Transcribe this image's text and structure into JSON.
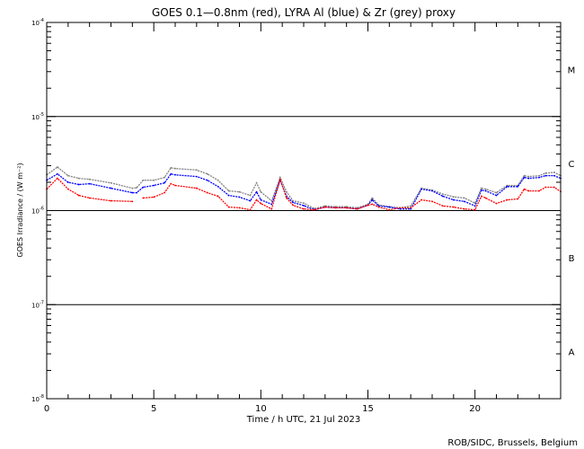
{
  "chart_data": {
    "type": "line",
    "title": "GOES 0.1—0.8nm (red), LYRA Al (blue) & Zr (grey) proxy",
    "xlabel": "Time / h UTC, 21 Jul 2023",
    "ylabel": "GOES Irradiance / (W m⁻²)",
    "xlim": [
      0,
      24
    ],
    "ylim": [
      1e-08,
      0.0001
    ],
    "yscale": "log",
    "x_ticks": [
      0,
      5,
      10,
      15,
      20
    ],
    "x_tick_labels": [
      "0",
      "5",
      "10",
      "15",
      "20"
    ],
    "y_ticks": [
      1e-08,
      1e-07,
      1e-06,
      1e-05,
      0.0001
    ],
    "y_tick_labels": [
      {
        "base": "10",
        "exp": "-8"
      },
      {
        "base": "10",
        "exp": "-7"
      },
      {
        "base": "10",
        "exp": "-6"
      },
      {
        "base": "10",
        "exp": "-5"
      },
      {
        "base": "10",
        "exp": "-4"
      }
    ],
    "flare_classes": [
      {
        "label": "A",
        "lo": 1e-08,
        "hi": 1e-07
      },
      {
        "label": "B",
        "lo": 1e-07,
        "hi": 1e-06
      },
      {
        "label": "C",
        "lo": 1e-06,
        "hi": 1e-05
      },
      {
        "label": "M",
        "lo": 1e-05,
        "hi": 0.0001
      }
    ],
    "class_boundaries": [
      1e-07,
      1e-06,
      1e-05
    ],
    "x": [
      0,
      0.5,
      1,
      1.5,
      2,
      3,
      4,
      4.2,
      4.5,
      5,
      5.5,
      5.8,
      6,
      7,
      7.5,
      8,
      8.5,
      9,
      9.5,
      9.8,
      10,
      10.5,
      10.9,
      11.2,
      11.5,
      12,
      12.5,
      13,
      13.5,
      14,
      14.5,
      15,
      15.2,
      15.5,
      16,
      16.5,
      17,
      17.5,
      18,
      18.5,
      19,
      19.5,
      20,
      20.3,
      20.5,
      21,
      21.5,
      22,
      22.3,
      22.5,
      23,
      23.3,
      23.7,
      24
    ],
    "series": [
      {
        "name": "LYRA Zr proxy",
        "color": "#808080",
        "unit_scale": 1e-06,
        "values": [
          2.4,
          2.9,
          2.35,
          2.2,
          2.15,
          1.97,
          1.73,
          1.75,
          2.1,
          2.1,
          2.25,
          2.85,
          2.8,
          2.7,
          2.45,
          2.1,
          1.62,
          1.58,
          1.45,
          1.97,
          1.58,
          1.27,
          2.25,
          1.58,
          1.27,
          1.2,
          1.05,
          1.12,
          1.1,
          1.1,
          1.07,
          1.17,
          1.36,
          1.15,
          1.1,
          1.07,
          1.12,
          1.73,
          1.65,
          1.5,
          1.4,
          1.36,
          1.2,
          1.73,
          1.69,
          1.55,
          1.85,
          1.85,
          2.35,
          2.3,
          2.35,
          2.5,
          2.55,
          2.35
        ]
      },
      {
        "name": "LYRA Al proxy",
        "color": "#0000ff",
        "unit_scale": 1e-06,
        "values": [
          2.1,
          2.45,
          2.0,
          1.89,
          1.93,
          1.73,
          1.55,
          1.55,
          1.77,
          1.85,
          1.97,
          2.45,
          2.4,
          2.3,
          2.1,
          1.8,
          1.45,
          1.39,
          1.27,
          1.58,
          1.3,
          1.17,
          2.1,
          1.42,
          1.22,
          1.13,
          1.02,
          1.09,
          1.07,
          1.07,
          1.04,
          1.14,
          1.3,
          1.12,
          1.09,
          1.04,
          1.04,
          1.69,
          1.62,
          1.42,
          1.3,
          1.25,
          1.12,
          1.65,
          1.62,
          1.45,
          1.8,
          1.8,
          2.25,
          2.2,
          2.25,
          2.35,
          2.35,
          2.2
        ]
      },
      {
        "name": "GOES 0.1-0.8nm",
        "color": "#ff0000",
        "unit_scale": 1e-06,
        "values": [
          1.69,
          2.2,
          1.69,
          1.45,
          1.36,
          1.27,
          1.25,
          null,
          1.36,
          1.39,
          1.55,
          1.93,
          1.85,
          1.73,
          1.55,
          1.42,
          1.09,
          1.07,
          1.02,
          1.3,
          1.19,
          1.04,
          2.15,
          1.36,
          1.14,
          1.04,
          1.02,
          1.09,
          1.07,
          1.07,
          1.04,
          1.14,
          1.17,
          1.09,
          1.02,
          1.07,
          1.07,
          1.3,
          1.25,
          1.12,
          1.09,
          1.04,
          1.02,
          1.42,
          1.36,
          1.19,
          1.3,
          1.33,
          1.69,
          1.62,
          1.62,
          1.77,
          1.77,
          1.59
        ]
      }
    ],
    "credit": "ROB/SIDC, Brussels, Belgium"
  }
}
